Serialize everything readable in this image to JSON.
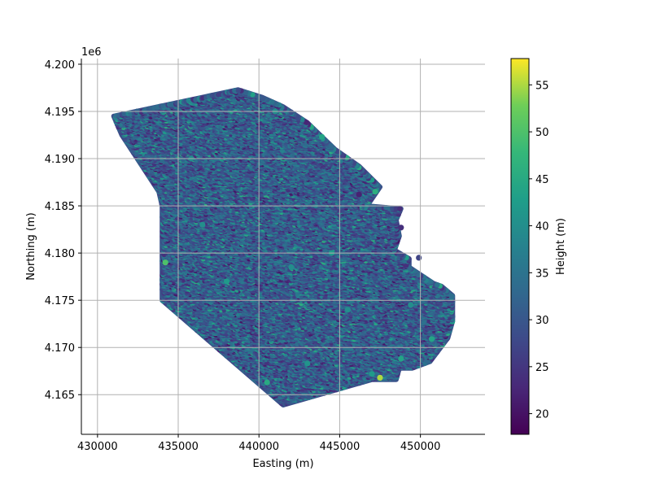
{
  "chart_data": {
    "type": "scatter",
    "title": "",
    "xlabel": "Easting (m)",
    "ylabel": "Northing (m)",
    "y_offset_label": "1e6",
    "colorbar_label": "Height (m)",
    "colormap": "viridis",
    "xlim": [
      429000,
      454000
    ],
    "ylim": [
      4160800,
      4200600
    ],
    "clim": [
      17.8,
      57.8
    ],
    "grid": true,
    "x_ticks": [
      430000,
      435000,
      440000,
      445000,
      450000
    ],
    "x_tick_labels": [
      "430000",
      "435000",
      "440000",
      "445000",
      "450000"
    ],
    "y_ticks": [
      4165000,
      4170000,
      4175000,
      4180000,
      4185000,
      4190000,
      4195000,
      4200000
    ],
    "y_tick_labels": [
      "4.165",
      "4.170",
      "4.175",
      "4.180",
      "4.185",
      "4.190",
      "4.195",
      "4.200"
    ],
    "colorbar_ticks": [
      20,
      25,
      30,
      35,
      40,
      45,
      50,
      55
    ],
    "colorbar_tick_labels": [
      "20",
      "25",
      "30",
      "35",
      "40",
      "45",
      "50",
      "55"
    ],
    "survey_boundary": [
      [
        431000,
        4194500
      ],
      [
        438700,
        4197300
      ],
      [
        440200,
        4196500
      ],
      [
        441500,
        4195500
      ],
      [
        443000,
        4193800
      ],
      [
        444700,
        4191000
      ],
      [
        446200,
        4189200
      ],
      [
        447500,
        4187000
      ],
      [
        446700,
        4185000
      ],
      [
        448800,
        4184700
      ],
      [
        448500,
        4183500
      ],
      [
        448700,
        4181800
      ],
      [
        448400,
        4180300
      ],
      [
        449300,
        4179400
      ],
      [
        449300,
        4178500
      ],
      [
        450800,
        4176800
      ],
      [
        451300,
        4176500
      ],
      [
        452000,
        4175500
      ],
      [
        452000,
        4172800
      ],
      [
        451700,
        4171000
      ],
      [
        450600,
        4168500
      ],
      [
        449500,
        4167800
      ],
      [
        448700,
        4167800
      ],
      [
        448500,
        4166600
      ],
      [
        447000,
        4166600
      ],
      [
        441500,
        4163900
      ],
      [
        434000,
        4175000
      ],
      [
        434000,
        4185000
      ],
      [
        433800,
        4186500
      ],
      [
        431500,
        4192500
      ],
      [
        431000,
        4194500
      ]
    ],
    "highlight_points": [
      {
        "x": 447200,
        "y": 4186500,
        "v": 46
      },
      {
        "x": 434200,
        "y": 4179000,
        "v": 50
      },
      {
        "x": 447500,
        "y": 4166800,
        "v": 55
      },
      {
        "x": 448800,
        "y": 4168800,
        "v": 44
      },
      {
        "x": 447000,
        "y": 4167200,
        "v": 42
      },
      {
        "x": 440500,
        "y": 4166300,
        "v": 45
      },
      {
        "x": 450700,
        "y": 4170900,
        "v": 44
      },
      {
        "x": 448800,
        "y": 4182700,
        "v": 24
      },
      {
        "x": 449900,
        "y": 4179500,
        "v": 27
      },
      {
        "x": 446200,
        "y": 4186200,
        "v": 22
      },
      {
        "x": 441000,
        "y": 4195000,
        "v": 40
      },
      {
        "x": 443900,
        "y": 4192300,
        "v": 44
      },
      {
        "x": 438000,
        "y": 4177000,
        "v": 42
      },
      {
        "x": 442000,
        "y": 4178500,
        "v": 40
      },
      {
        "x": 444500,
        "y": 4180000,
        "v": 42
      },
      {
        "x": 436500,
        "y": 4183000,
        "v": 40
      },
      {
        "x": 435800,
        "y": 4190000,
        "v": 40
      },
      {
        "x": 445500,
        "y": 4174000,
        "v": 40
      },
      {
        "x": 443000,
        "y": 4168300,
        "v": 41
      },
      {
        "x": 449400,
        "y": 4174500,
        "v": 40
      }
    ]
  }
}
